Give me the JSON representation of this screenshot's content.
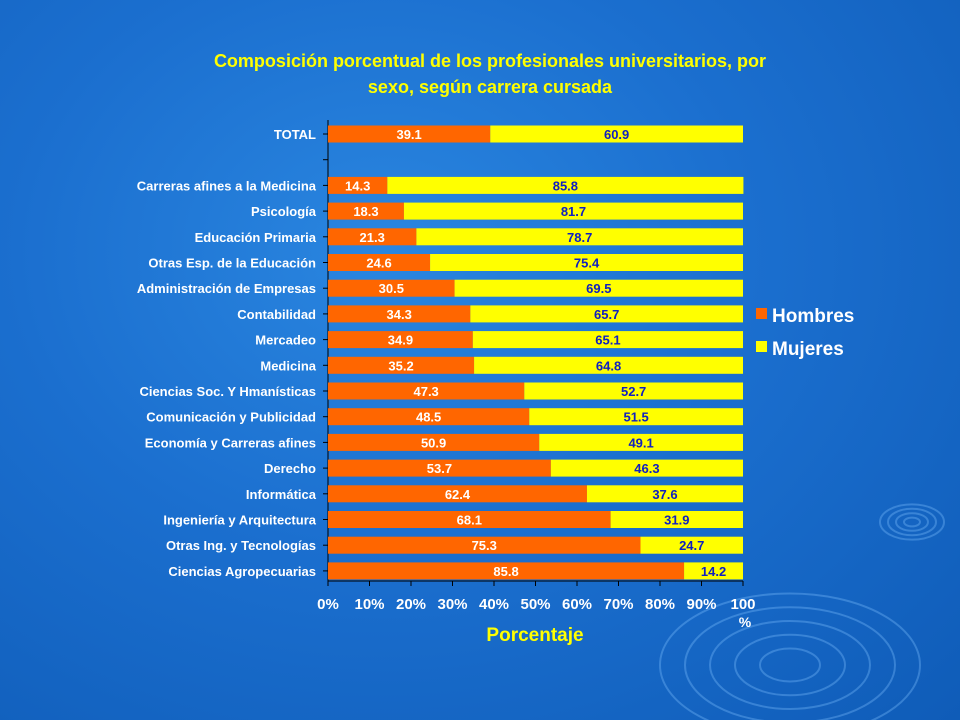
{
  "chart_data": {
    "type": "bar",
    "orientation": "horizontal",
    "stacked": true,
    "title_line1": "Composición porcentual de los profesionales universitarios, por",
    "title_line2": "sexo, según carrera cursada",
    "xlabel": "Porcentaje",
    "x_unit": "%",
    "xlim": [
      0,
      100
    ],
    "x_ticks": [
      "0%",
      "10%",
      "20%",
      "30%",
      "40%",
      "50%",
      "60%",
      "70%",
      "80%",
      "90%",
      "100"
    ],
    "legend_position": "right",
    "categories": [
      "TOTAL",
      "",
      "Carreras afines a la Medicina",
      "Psicología",
      "Educación Primaria",
      "Otras Esp. de la Educación",
      "Administración de Empresas",
      "Contabilidad",
      "Mercadeo",
      "Medicina",
      "Ciencias Soc. Y Hmanísticas",
      "Comunicación y Publicidad",
      "Economía y Carreras afines",
      "Derecho",
      "Informática",
      "Ingeniería y Arquitectura",
      "Otras Ing. y Tecnologías",
      "Ciencias Agropecuarias"
    ],
    "series": [
      {
        "name": "Hombres",
        "color": "#ff6600",
        "values": [
          39.1,
          null,
          14.3,
          18.3,
          21.3,
          24.6,
          30.5,
          34.3,
          34.9,
          35.2,
          47.3,
          48.5,
          50.9,
          53.7,
          62.4,
          68.1,
          75.3,
          85.8
        ]
      },
      {
        "name": "Mujeres",
        "color": "#ffff00",
        "values": [
          60.9,
          null,
          85.8,
          81.7,
          78.7,
          75.4,
          69.5,
          65.7,
          65.1,
          64.8,
          52.7,
          51.5,
          49.1,
          46.3,
          37.6,
          31.9,
          24.7,
          14.2
        ]
      }
    ]
  }
}
